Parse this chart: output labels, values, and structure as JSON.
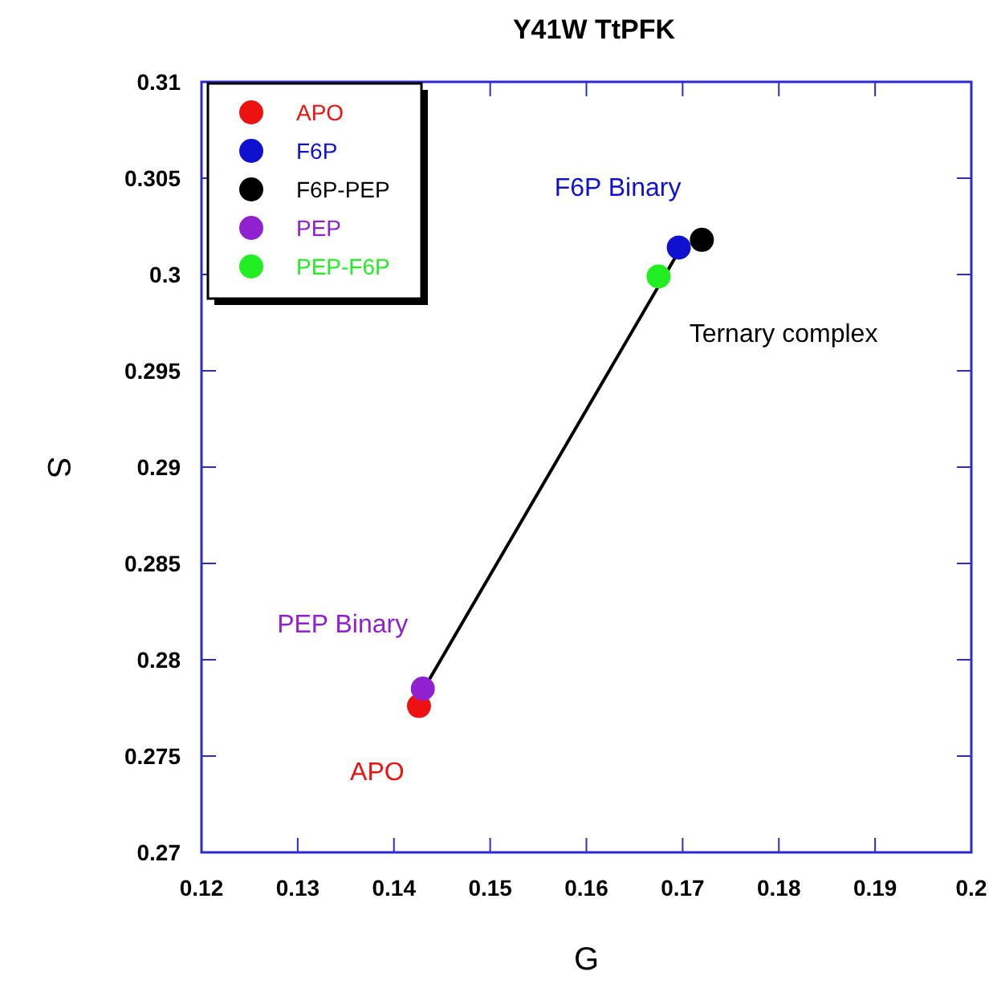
{
  "chart_data": {
    "type": "scatter",
    "title": "Y41W TtPFK",
    "xlabel": "G",
    "ylabel": "S",
    "xlim": [
      0.12,
      0.2
    ],
    "ylim": [
      0.27,
      0.31
    ],
    "xticks": [
      0.12,
      0.13,
      0.14,
      0.15,
      0.16,
      0.17,
      0.18,
      0.19,
      0.2
    ],
    "yticks": [
      0.27,
      0.275,
      0.28,
      0.285,
      0.29,
      0.295,
      0.3,
      0.305,
      0.31
    ],
    "grid": false,
    "legend": "top left",
    "marker": "circle",
    "series": [
      {
        "type": "line",
        "color": "#000000",
        "x": [
          0.143,
          0.1696
        ],
        "values": [
          0.2784,
          0.3012
        ],
        "marker": "none",
        "line_style": "solid"
      },
      {
        "name": "APO",
        "color": "#ee1111",
        "x": [
          0.1426
        ],
        "values": [
          0.2776
        ]
      },
      {
        "name": "F6P",
        "color": "#1010d0",
        "x": [
          0.1696
        ],
        "values": [
          0.3014
        ]
      },
      {
        "name": "F6P-PEP",
        "color": "#000000",
        "x": [
          0.172
        ],
        "values": [
          0.3018
        ]
      },
      {
        "name": "PEP",
        "color": "#9020d0",
        "x": [
          0.143
        ],
        "values": [
          0.2785
        ]
      },
      {
        "name": "PEP-F6P",
        "color": "#22ee22",
        "x": [
          0.1675
        ],
        "values": [
          0.2999
        ]
      }
    ],
    "annotations": [
      {
        "text": "F6P Binary",
        "x": 0.1696,
        "y": 0.3014
      },
      "Ternary complex",
      {
        "text": "PEP Binary",
        "x": 0.143,
        "y": 0.2785
      },
      {
        "text": "APO",
        "x": 0.1426,
        "y": 0.2776
      }
    ]
  }
}
